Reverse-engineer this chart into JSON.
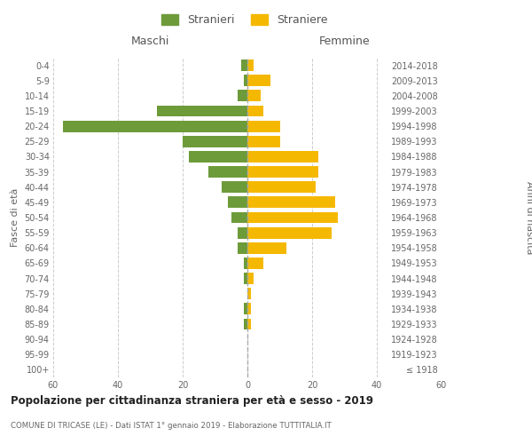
{
  "age_groups": [
    "100+",
    "95-99",
    "90-94",
    "85-89",
    "80-84",
    "75-79",
    "70-74",
    "65-69",
    "60-64",
    "55-59",
    "50-54",
    "45-49",
    "40-44",
    "35-39",
    "30-34",
    "25-29",
    "20-24",
    "15-19",
    "10-14",
    "5-9",
    "0-4"
  ],
  "birth_years": [
    "≤ 1918",
    "1919-1923",
    "1924-1928",
    "1929-1933",
    "1934-1938",
    "1939-1943",
    "1944-1948",
    "1949-1953",
    "1954-1958",
    "1959-1963",
    "1964-1968",
    "1969-1973",
    "1974-1978",
    "1979-1983",
    "1984-1988",
    "1989-1993",
    "1994-1998",
    "1999-2003",
    "2004-2008",
    "2009-2013",
    "2014-2018"
  ],
  "males": [
    0,
    0,
    0,
    1,
    1,
    0,
    1,
    1,
    3,
    3,
    5,
    6,
    8,
    12,
    18,
    20,
    57,
    28,
    3,
    1,
    2
  ],
  "females": [
    0,
    0,
    0,
    1,
    1,
    1,
    2,
    5,
    12,
    26,
    28,
    27,
    21,
    22,
    22,
    10,
    10,
    5,
    4,
    7,
    2
  ],
  "male_color": "#6d9b3a",
  "female_color": "#f5b800",
  "background_color": "#ffffff",
  "grid_color": "#cccccc",
  "title": "Popolazione per cittadinanza straniera per età e sesso - 2019",
  "subtitle": "COMUNE DI TRICASE (LE) - Dati ISTAT 1° gennaio 2019 - Elaborazione TUTTITALIA.IT",
  "ylabel_left": "Fasce di età",
  "ylabel_right": "Anni di nascita",
  "header_left": "Maschi",
  "header_right": "Femmine",
  "legend_males": "Stranieri",
  "legend_females": "Straniere",
  "xlim": 60,
  "bar_height": 0.75
}
